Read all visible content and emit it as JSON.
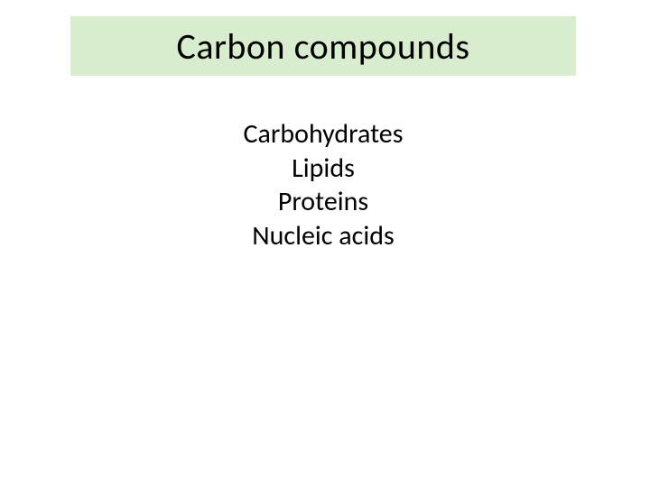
{
  "slide": {
    "title": "Carbon compounds",
    "title_box": {
      "background_color": "#d8ecce",
      "text_color": "#000000",
      "font_size": 40
    },
    "content": {
      "items": [
        "Carbohydrates",
        "Lipids",
        "Proteins",
        "Nucleic acids"
      ],
      "text_color": "#000000",
      "font_size": 30
    },
    "background_color": "#ffffff"
  }
}
